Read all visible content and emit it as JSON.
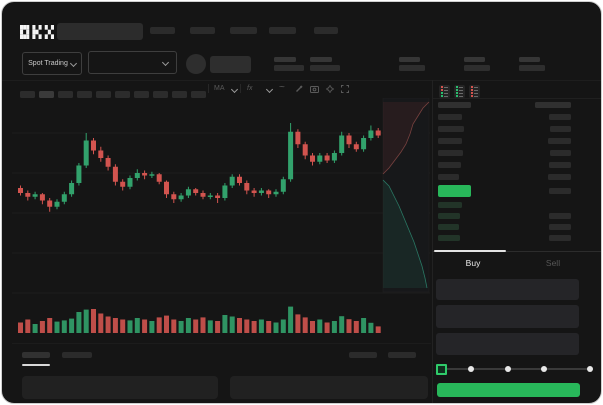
{
  "app": {
    "logo_text": "OKX"
  },
  "subheader": {
    "market_type_label": "Spot Trading"
  },
  "trade_panel": {
    "buy_tab_label": "Buy",
    "sell_tab_label": "Sell"
  },
  "chart_toolbar": {
    "indicator_label": "MA",
    "compare_label": "fx",
    "line_style_label": "~"
  },
  "icons": {
    "market_chevron": "chevron-down",
    "pair_chevron": "chevron-down",
    "pencil": "diagonal-pencil",
    "camera": "lens-circle",
    "gear": "gear-circle",
    "fullscreen": "corner-brackets",
    "orderbook_combined": "red-green-list",
    "orderbook_bids_only": "green-list",
    "orderbook_asks_only": "red-list"
  },
  "colors": {
    "green": "#28b75a",
    "candle_up": "#32a26c",
    "candle_down": "#d2544f",
    "depth_ask_line": "#b25b56",
    "depth_bid_line": "#35b391",
    "bid_row_tint": "#223428",
    "neutral_bar": "#2b2b2b"
  },
  "order_book": {
    "header": {
      "l": 33,
      "r": 36
    },
    "asks": [
      {
        "l": 24,
        "r": 22
      },
      {
        "l": 26,
        "r": 21
      },
      {
        "l": 24,
        "r": 23
      },
      {
        "l": 25,
        "r": 21
      },
      {
        "l": 23,
        "r": 22
      },
      {
        "l": 21,
        "r": 23
      }
    ],
    "last_price_row": {
      "w": 33,
      "r": 22
    },
    "bids": [
      {
        "l": 24,
        "r": 0
      },
      {
        "l": 22,
        "r": 22
      },
      {
        "l": 21,
        "r": 22
      },
      {
        "l": 22,
        "r": 22
      }
    ]
  },
  "percent_slider": {
    "positions": [
      0,
      25,
      50,
      75,
      100
    ],
    "current": 0
  },
  "chart_data": {
    "type": "candlestick",
    "ylim": [
      0,
      100
    ],
    "grid": true,
    "candles": [
      [
        40,
        42,
        34,
        36
      ],
      [
        36,
        38,
        30,
        33
      ],
      [
        33,
        37,
        31,
        35
      ],
      [
        35,
        36,
        27,
        30
      ],
      [
        30,
        32,
        21,
        25
      ],
      [
        25,
        31,
        23,
        29
      ],
      [
        29,
        37,
        27,
        35
      ],
      [
        35,
        46,
        33,
        44
      ],
      [
        44,
        60,
        42,
        58
      ],
      [
        58,
        84,
        56,
        78
      ],
      [
        78,
        80,
        67,
        70
      ],
      [
        70,
        73,
        61,
        64
      ],
      [
        64,
        66,
        54,
        57
      ],
      [
        57,
        59,
        42,
        45
      ],
      [
        45,
        47,
        38,
        41
      ],
      [
        41,
        50,
        39,
        48
      ],
      [
        48,
        55,
        46,
        52
      ],
      [
        52,
        54,
        47,
        50
      ],
      [
        50,
        53,
        48,
        51
      ],
      [
        51,
        52,
        43,
        45
      ],
      [
        45,
        46,
        32,
        35
      ],
      [
        35,
        37,
        28,
        31
      ],
      [
        31,
        36,
        29,
        34
      ],
      [
        34,
        41,
        32,
        39
      ],
      [
        39,
        40,
        34,
        36
      ],
      [
        36,
        38,
        31,
        33
      ],
      [
        33,
        36,
        31,
        34
      ],
      [
        34,
        36,
        28,
        32
      ],
      [
        32,
        44,
        30,
        42
      ],
      [
        42,
        51,
        40,
        49
      ],
      [
        49,
        51,
        42,
        44
      ],
      [
        44,
        46,
        35,
        38
      ],
      [
        38,
        40,
        33,
        36
      ],
      [
        36,
        40,
        34,
        38
      ],
      [
        38,
        39,
        32,
        35
      ],
      [
        35,
        39,
        33,
        37
      ],
      [
        37,
        49,
        35,
        47
      ],
      [
        47,
        92,
        45,
        85
      ],
      [
        85,
        87,
        72,
        75
      ],
      [
        75,
        77,
        63,
        66
      ],
      [
        66,
        68,
        58,
        61
      ],
      [
        61,
        68,
        59,
        66
      ],
      [
        66,
        68,
        60,
        62
      ],
      [
        62,
        70,
        60,
        68
      ],
      [
        68,
        85,
        66,
        82
      ],
      [
        82,
        84,
        72,
        75
      ],
      [
        75,
        77,
        69,
        71
      ],
      [
        71,
        82,
        69,
        80
      ],
      [
        80,
        90,
        78,
        86
      ],
      [
        86,
        88,
        80,
        82
      ]
    ],
    "volumes": [
      35,
      45,
      30,
      40,
      50,
      38,
      42,
      48,
      70,
      78,
      80,
      65,
      55,
      50,
      45,
      42,
      50,
      45,
      40,
      52,
      58,
      45,
      40,
      50,
      45,
      52,
      42,
      40,
      60,
      55,
      50,
      45,
      40,
      45,
      40,
      35,
      45,
      88,
      62,
      52,
      40,
      45,
      35,
      40,
      56,
      46,
      40,
      50,
      34,
      22
    ]
  },
  "depth": {
    "ask_line": [
      [
        417,
        4
      ],
      [
        411,
        10
      ],
      [
        406,
        18
      ],
      [
        401,
        26
      ],
      [
        398,
        36
      ],
      [
        394,
        46
      ],
      [
        389,
        54
      ],
      [
        383,
        62
      ],
      [
        377,
        70
      ],
      [
        371,
        76
      ]
    ],
    "bid_line": [
      [
        371,
        82
      ],
      [
        377,
        88
      ],
      [
        382,
        98
      ],
      [
        387,
        108
      ],
      [
        392,
        120
      ],
      [
        397,
        132
      ],
      [
        402,
        144
      ],
      [
        406,
        156
      ],
      [
        410,
        168
      ],
      [
        413,
        180
      ],
      [
        415,
        190
      ]
    ]
  }
}
